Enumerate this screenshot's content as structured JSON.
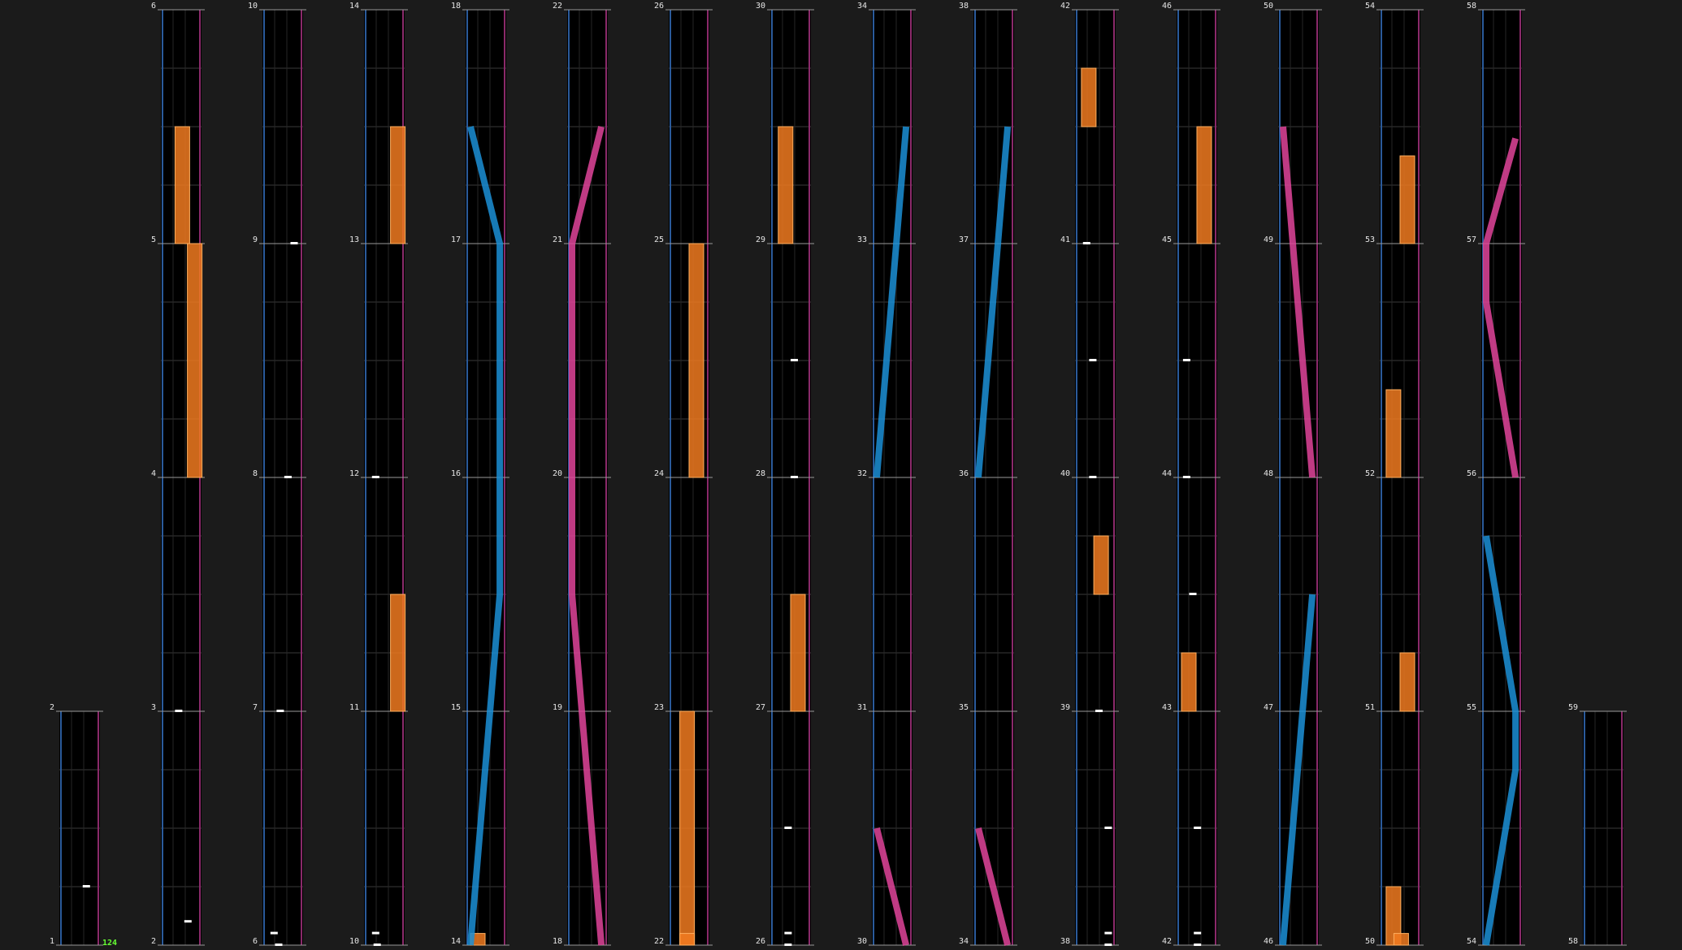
{
  "chart_view": {
    "name": "rhythm-game chart editor overview",
    "bpm_label": "124",
    "colors": {
      "background": "#1b1b1b",
      "lane_bg": "#000000",
      "grid": "#3a3a3a",
      "barline": "#9a9a9a",
      "left_edge": "#2a5a9a",
      "right_edge": "#8a2a6a",
      "hold_note": "#f07a20",
      "tap_note": "#ffffff",
      "slide_left": "#1b8fd6",
      "slide_right": "#e0449a",
      "bpm_text": "#66ff33"
    }
  },
  "chart_data": {
    "type": "rhythm-chart",
    "measures": [
      1,
      2,
      3,
      4,
      5,
      6,
      7,
      8,
      9,
      10,
      11,
      12,
      13,
      14,
      15,
      16,
      17,
      18,
      19,
      20,
      21,
      22,
      23,
      24,
      25,
      26,
      27,
      28,
      29,
      30,
      31,
      32,
      33,
      34,
      35,
      36,
      37,
      38,
      39,
      40,
      41,
      42,
      43,
      44,
      45,
      46,
      47,
      48,
      49,
      50,
      51,
      52,
      53,
      54,
      55,
      56,
      57,
      58,
      59
    ],
    "column_start_measures": [
      1,
      2,
      6,
      10,
      14,
      18,
      22,
      26,
      30,
      34,
      38,
      42,
      46,
      50,
      54,
      58
    ],
    "bpm": [
      {
        "measure": 1,
        "value": 124
      }
    ],
    "notes": [
      {
        "kind": "tap",
        "m": 1.25,
        "x": 0.6
      },
      {
        "kind": "tap",
        "m": 2.1,
        "x": 0.6
      },
      {
        "kind": "tap",
        "m": 3.0,
        "x": 0.3
      },
      {
        "kind": "hold",
        "m0": 4.0,
        "m1": 5.0,
        "x": 0.7
      },
      {
        "kind": "hold",
        "m0": 5.0,
        "m1": 5.5,
        "x": 0.3
      },
      {
        "kind": "tap",
        "m": 6.0,
        "x": 0.25
      },
      {
        "kind": "tap",
        "m": 6.05,
        "x": 0.1
      },
      {
        "kind": "tap",
        "m": 7.0,
        "x": 0.3
      },
      {
        "kind": "tap",
        "m": 8.0,
        "x": 0.55
      },
      {
        "kind": "tap",
        "m": 9.0,
        "x": 0.75
      },
      {
        "kind": "tap",
        "m": 10.0,
        "x": 0.15
      },
      {
        "kind": "tap",
        "m": 10.05,
        "x": 0.1
      },
      {
        "kind": "hold",
        "m0": 11.0,
        "m1": 11.5,
        "x": 0.7
      },
      {
        "kind": "tap",
        "m": 12.0,
        "x": 0.1
      },
      {
        "kind": "hold",
        "m0": 13.0,
        "m1": 13.5,
        "x": 0.7
      },
      {
        "kind": "hold",
        "m0": 14.0,
        "m1": 14.05,
        "x": 0.0
      },
      {
        "kind": "hold",
        "m0": 22.0,
        "m1": 23.0,
        "x": 0.2
      },
      {
        "kind": "hold",
        "m0": 24.0,
        "m1": 25.0,
        "x": 0.5
      },
      {
        "kind": "hold",
        "m0": 22.0,
        "m1": 22.05,
        "x": 0.2
      },
      {
        "kind": "tap",
        "m": 26.0,
        "x": 0.3
      },
      {
        "kind": "tap",
        "m": 26.5,
        "x": 0.3
      },
      {
        "kind": "tap",
        "m": 26.05,
        "x": 0.3
      },
      {
        "kind": "hold",
        "m0": 27.0,
        "m1": 27.5,
        "x": 0.5
      },
      {
        "kind": "tap",
        "m": 28.0,
        "x": 0.5
      },
      {
        "kind": "tap",
        "m": 28.5,
        "x": 0.5
      },
      {
        "kind": "hold",
        "m0": 29.0,
        "m1": 29.5,
        "x": 0.1
      },
      {
        "kind": "tap",
        "m": 38.0,
        "x": 0.8
      },
      {
        "kind": "tap",
        "m": 38.5,
        "x": 0.8
      },
      {
        "kind": "tap",
        "m": 38.05,
        "x": 0.8
      },
      {
        "kind": "tap",
        "m": 39.0,
        "x": 0.5
      },
      {
        "kind": "hold",
        "m0": 39.5,
        "m1": 39.75,
        "x": 0.45
      },
      {
        "kind": "tap",
        "m": 40.0,
        "x": 0.3
      },
      {
        "kind": "tap",
        "m": 40.5,
        "x": 0.3
      },
      {
        "kind": "tap",
        "m": 41.0,
        "x": 0.1
      },
      {
        "kind": "hold",
        "m0": 41.5,
        "m1": 41.75,
        "x": 0.05
      },
      {
        "kind": "tap",
        "m": 42.0,
        "x": 0.4
      },
      {
        "kind": "tap",
        "m": 42.5,
        "x": 0.4
      },
      {
        "kind": "tap",
        "m": 42.05,
        "x": 0.4
      },
      {
        "kind": "hold",
        "m0": 43.0,
        "m1": 43.25,
        "x": 0.0
      },
      {
        "kind": "tap",
        "m": 43.5,
        "x": 0.25
      },
      {
        "kind": "tap",
        "m": 44.0,
        "x": 0.05
      },
      {
        "kind": "tap",
        "m": 44.5,
        "x": 0.05
      },
      {
        "kind": "hold",
        "m0": 45.0,
        "m1": 45.5,
        "x": 0.5
      },
      {
        "kind": "hold",
        "m0": 50.0,
        "m1": 50.25,
        "x": 0.05
      },
      {
        "kind": "hold",
        "m0": 51.0,
        "m1": 51.25,
        "x": 0.5
      },
      {
        "kind": "hold",
        "m0": 52.0,
        "m1": 52.375,
        "x": 0.05
      },
      {
        "kind": "hold",
        "m0": 53.0,
        "m1": 53.375,
        "x": 0.5
      },
      {
        "kind": "hold",
        "m0": 50.0,
        "m1": 50.05,
        "x": 0.3
      }
    ],
    "slides": [
      {
        "side": "left",
        "points": [
          [
            14,
            0.0
          ],
          [
            15.5,
            0.95
          ],
          [
            17,
            0.95
          ],
          [
            17.5,
            0.0
          ]
        ]
      },
      {
        "side": "right",
        "points": [
          [
            18,
            0.95
          ],
          [
            19.5,
            0.0
          ],
          [
            21,
            0.0
          ],
          [
            21.5,
            0.95
          ]
        ]
      },
      {
        "side": "right",
        "points": [
          [
            30,
            0.95
          ],
          [
            30.5,
            0.0
          ]
        ]
      },
      {
        "side": "left",
        "points": [
          [
            32,
            0.0
          ],
          [
            33.5,
            0.95
          ]
        ]
      },
      {
        "side": "right",
        "points": [
          [
            34,
            0.95
          ],
          [
            34.5,
            0.0
          ]
        ]
      },
      {
        "side": "left",
        "points": [
          [
            36,
            0.0
          ],
          [
            37.5,
            0.95
          ]
        ]
      },
      {
        "side": "left",
        "points": [
          [
            46,
            0.0
          ],
          [
            47.5,
            0.95
          ]
        ]
      },
      {
        "side": "right",
        "points": [
          [
            48,
            0.95
          ],
          [
            49.5,
            0.0
          ]
        ]
      },
      {
        "side": "left",
        "points": [
          [
            54,
            0.0
          ],
          [
            54.75,
            0.95
          ],
          [
            55,
            0.95
          ],
          [
            55.75,
            0.0
          ]
        ]
      },
      {
        "side": "right",
        "points": [
          [
            56,
            0.95
          ],
          [
            56.75,
            0.0
          ],
          [
            57,
            0.0
          ],
          [
            57.45,
            0.95
          ]
        ]
      }
    ]
  }
}
